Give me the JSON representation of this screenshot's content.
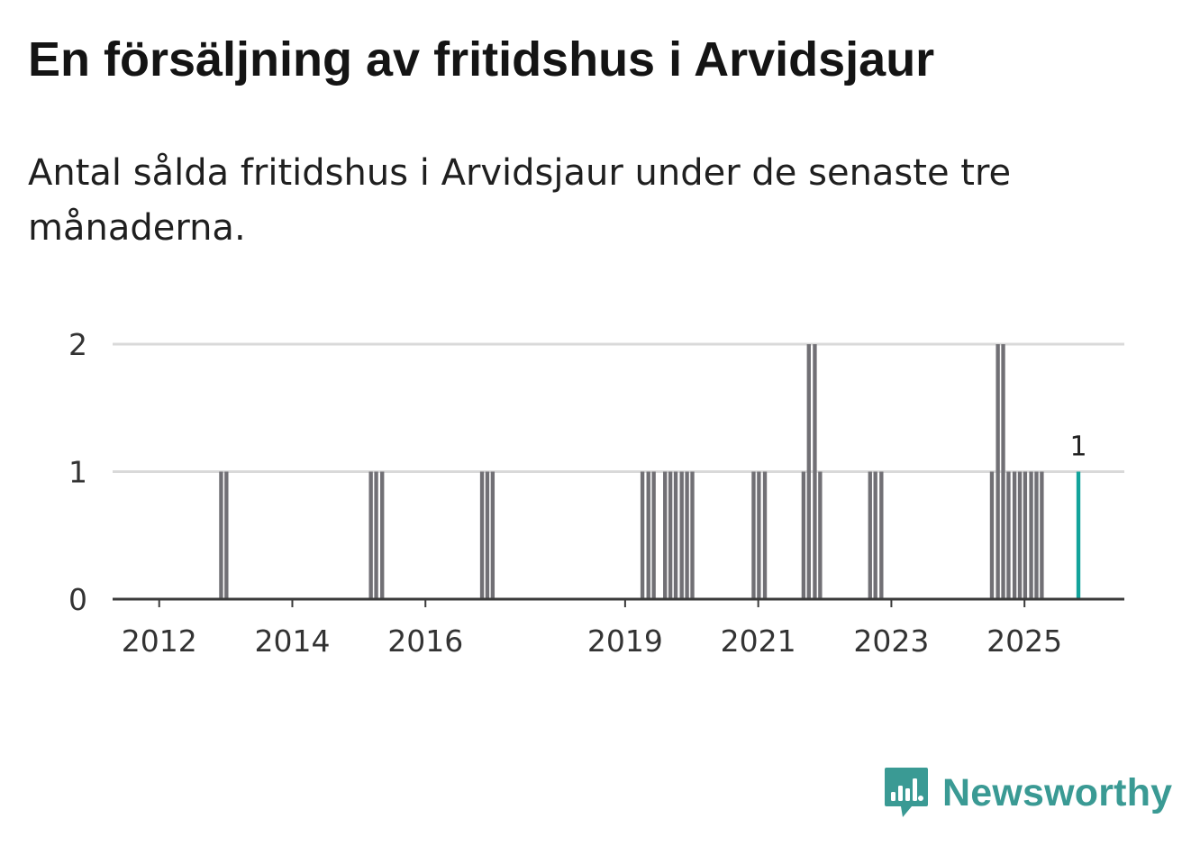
{
  "title": "En försäljning av fritidshus i Arvidsjaur",
  "subtitle": "Antal sålda fritidshus i Arvidsjaur under de senaste tre månaderna.",
  "brand": {
    "name": "Newsworthy",
    "color": "#3a9a94",
    "icon": "newsworthy-logo-icon"
  },
  "colors": {
    "bar": "#717075",
    "highlight": "#12a39b",
    "grid": "#d9d9d9",
    "axis": "#3a3a3a"
  },
  "chart_data": {
    "type": "bar",
    "title": "En försäljning av fritidshus i Arvidsjaur",
    "xlabel": "",
    "ylabel": "",
    "ylim": [
      0,
      2
    ],
    "yticks": [
      0,
      1,
      2
    ],
    "xlim": [
      2011.3,
      2026.5
    ],
    "xticks": [
      {
        "value": 2012,
        "label": "2012"
      },
      {
        "value": 2014,
        "label": "2014"
      },
      {
        "value": 2016,
        "label": "2016"
      },
      {
        "value": 2019,
        "label": "2019"
      },
      {
        "value": 2021,
        "label": "2021"
      },
      {
        "value": 2023,
        "label": "2023"
      },
      {
        "value": 2025,
        "label": "2025"
      }
    ],
    "grid": true,
    "bar_width": 0.0833,
    "series": [
      {
        "name": "Sålda fritidshus",
        "points": [
          {
            "x": 2012.93,
            "value": 1
          },
          {
            "x": 2013.01,
            "value": 1
          },
          {
            "x": 2015.18,
            "value": 1
          },
          {
            "x": 2015.26,
            "value": 1
          },
          {
            "x": 2015.35,
            "value": 1
          },
          {
            "x": 2016.85,
            "value": 1
          },
          {
            "x": 2016.93,
            "value": 1
          },
          {
            "x": 2017.01,
            "value": 1
          },
          {
            "x": 2019.26,
            "value": 1
          },
          {
            "x": 2019.35,
            "value": 1
          },
          {
            "x": 2019.43,
            "value": 1
          },
          {
            "x": 2019.6,
            "value": 1
          },
          {
            "x": 2019.68,
            "value": 1
          },
          {
            "x": 2019.76,
            "value": 1
          },
          {
            "x": 2019.85,
            "value": 1
          },
          {
            "x": 2019.93,
            "value": 1
          },
          {
            "x": 2020.01,
            "value": 1
          },
          {
            "x": 2020.93,
            "value": 1
          },
          {
            "x": 2021.01,
            "value": 1
          },
          {
            "x": 2021.1,
            "value": 1
          },
          {
            "x": 2021.68,
            "value": 1
          },
          {
            "x": 2021.76,
            "value": 2
          },
          {
            "x": 2021.85,
            "value": 2
          },
          {
            "x": 2021.93,
            "value": 1
          },
          {
            "x": 2022.68,
            "value": 1
          },
          {
            "x": 2022.76,
            "value": 1
          },
          {
            "x": 2022.85,
            "value": 1
          },
          {
            "x": 2024.51,
            "value": 1
          },
          {
            "x": 2024.6,
            "value": 2
          },
          {
            "x": 2024.68,
            "value": 2
          },
          {
            "x": 2024.76,
            "value": 1
          },
          {
            "x": 2024.85,
            "value": 1
          },
          {
            "x": 2024.93,
            "value": 1
          },
          {
            "x": 2025.01,
            "value": 1
          },
          {
            "x": 2025.1,
            "value": 1
          },
          {
            "x": 2025.18,
            "value": 1
          },
          {
            "x": 2025.26,
            "value": 1
          }
        ]
      },
      {
        "name": "Senaste tre månaderna",
        "points": [
          {
            "x": 2025.81,
            "value": 1,
            "label": "1"
          }
        ]
      }
    ]
  }
}
